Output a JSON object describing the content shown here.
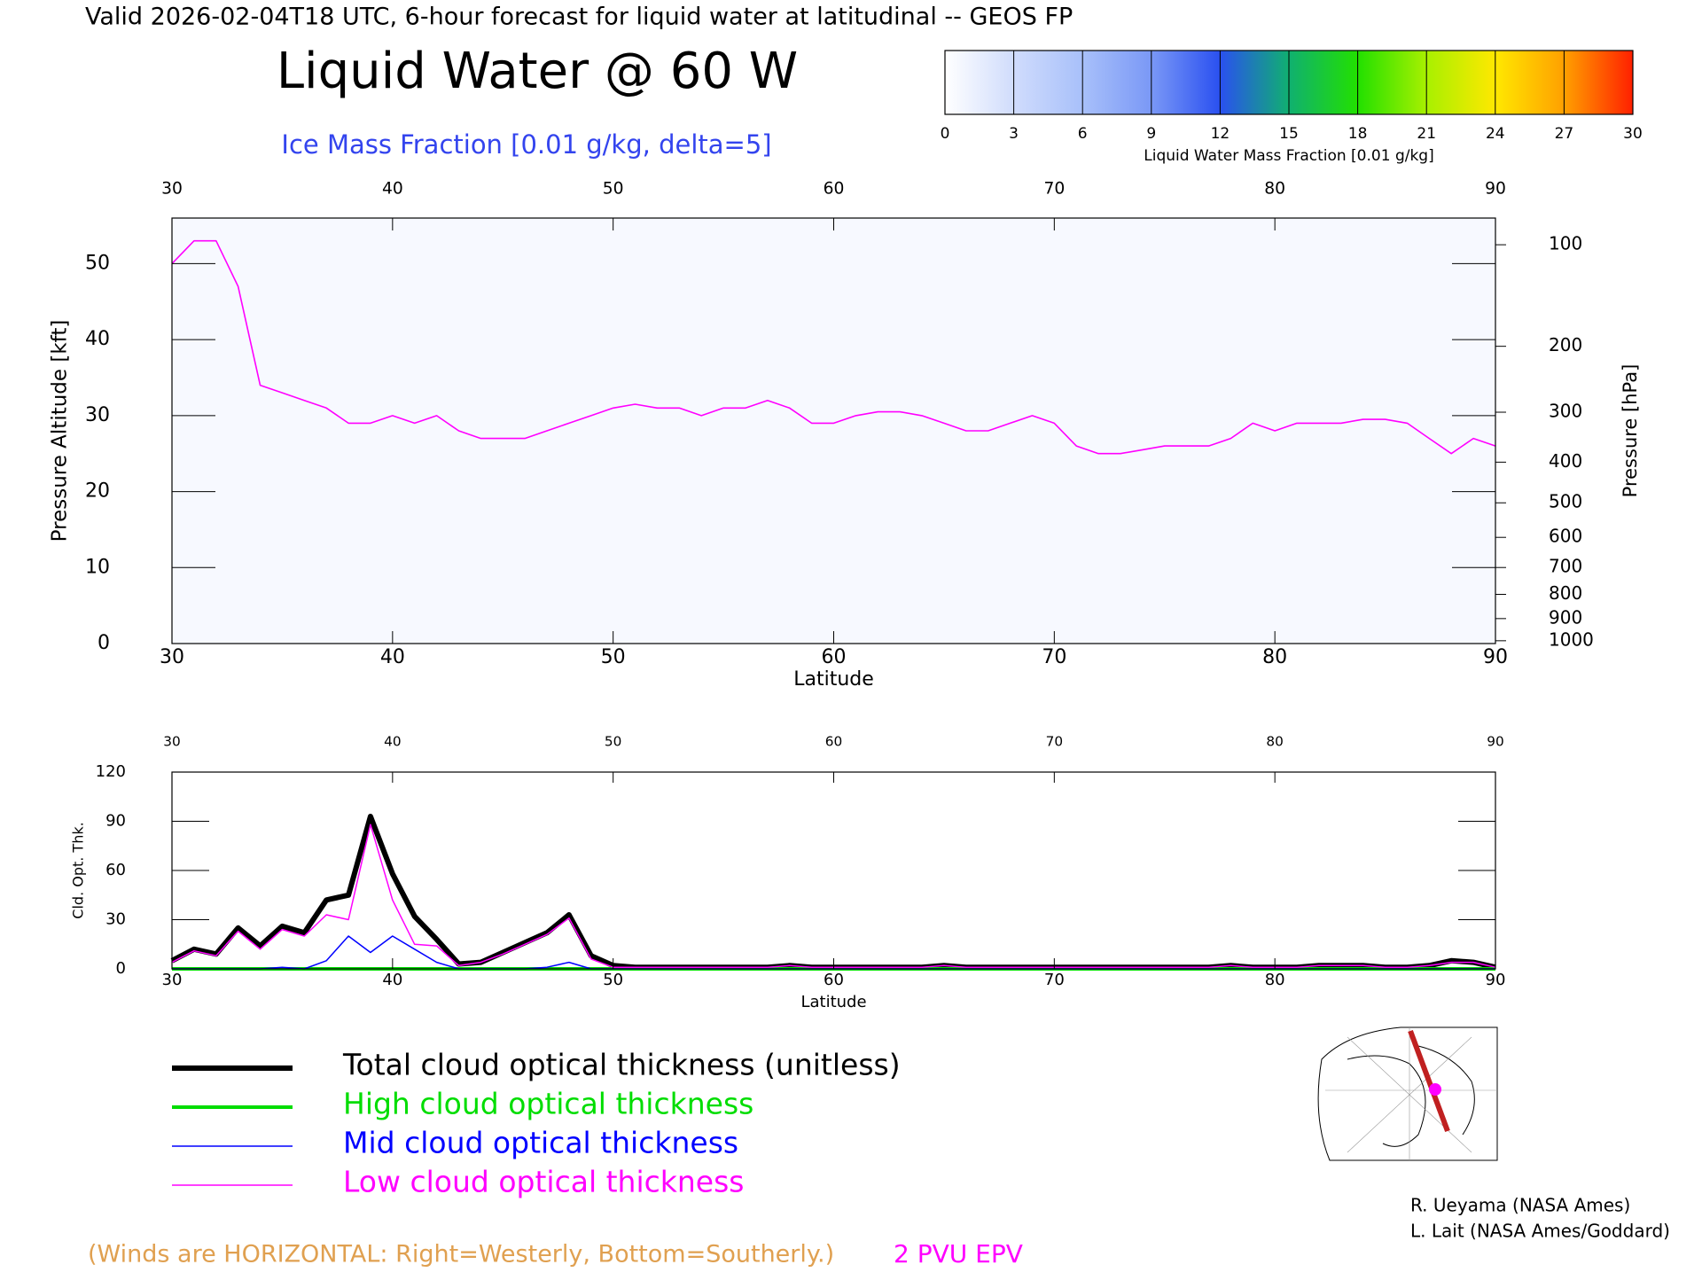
{
  "header": "Valid 2026-02-04T18 UTC, 6-hour forecast for liquid water at latitudinal -- GEOS FP",
  "footnote": "(Winds are HORIZONTAL: Right=Westerly, Bottom=Southerly.)",
  "credits": [
    "R. Ueyama (NASA Ames)",
    "L. Lait (NASA Ames/Goddard)"
  ],
  "chart_data": [
    {
      "type": "line",
      "title": "Liquid Water @ 60 W",
      "subtitle": "Ice Mass Fraction [0.01 g/kg, delta=5]",
      "x_label": "Latitude",
      "y_label": "Pressure Altitude [kft]",
      "y2_label": "Pressure [hPa]",
      "xlim": [
        30,
        90
      ],
      "xticks": [
        30,
        40,
        50,
        60,
        70,
        80,
        90
      ],
      "ylim": [
        0,
        56
      ],
      "yticks": [
        0,
        10,
        20,
        30,
        40,
        50
      ],
      "y2scale": "pressure-altitude",
      "y2lim": [
        1013.25,
        82
      ],
      "y2ticks": [
        100,
        200,
        300,
        400,
        500,
        600,
        700,
        800,
        900,
        1000
      ],
      "x": [
        30,
        31,
        32,
        33,
        34,
        35,
        36,
        37,
        38,
        39,
        40,
        41,
        42,
        43,
        44,
        45,
        46,
        47,
        48,
        49,
        50,
        51,
        52,
        53,
        54,
        55,
        56,
        57,
        58,
        59,
        60,
        61,
        62,
        63,
        64,
        65,
        66,
        67,
        68,
        69,
        70,
        71,
        72,
        73,
        74,
        75,
        76,
        77,
        78,
        79,
        80,
        81,
        82,
        83,
        84,
        85,
        86,
        87,
        88,
        89,
        90
      ],
      "series": [
        {
          "name": "2 PVU EPV",
          "color": "#ff00ff",
          "values": [
            50,
            53,
            53,
            47,
            34,
            33,
            32,
            31,
            29,
            29,
            30,
            29,
            30,
            28,
            27,
            27,
            27,
            28,
            29,
            30,
            31,
            31.5,
            31,
            31,
            30,
            31,
            31,
            32,
            31,
            29,
            29,
            30,
            30.5,
            30.5,
            30,
            29,
            28,
            28,
            29,
            30,
            29,
            26,
            25,
            25,
            25.5,
            26,
            26,
            26,
            27,
            29,
            28,
            29,
            29,
            29,
            29.5,
            29.5,
            29,
            27,
            25,
            27,
            26
          ]
        }
      ]
    },
    {
      "type": "colorbar",
      "label": "Liquid Water Mass Fraction [0.01 g/kg]",
      "lim": [
        0,
        30
      ],
      "ticks": [
        0,
        3,
        6,
        9,
        12,
        15,
        18,
        21,
        24,
        27,
        30
      ],
      "colors": [
        "#ffffff",
        "#d0dcfc",
        "#a8c0fa",
        "#7a98f6",
        "#2a50f0",
        "#10b070",
        "#22e000",
        "#a8f000",
        "#ffe800",
        "#ffa000",
        "#ff2000"
      ]
    },
    {
      "type": "line",
      "x_label": "Latitude",
      "y_label": "Cld. Opt. Thk.",
      "xlim": [
        30,
        90
      ],
      "xticks": [
        30,
        40,
        50,
        60,
        70,
        80,
        90
      ],
      "ylim": [
        0,
        120
      ],
      "yticks": [
        0,
        30,
        60,
        90,
        120
      ],
      "x": [
        30,
        31,
        32,
        33,
        34,
        35,
        36,
        37,
        38,
        39,
        40,
        41,
        42,
        43,
        44,
        45,
        46,
        47,
        48,
        49,
        50,
        51,
        52,
        53,
        54,
        55,
        56,
        57,
        58,
        59,
        60,
        61,
        62,
        63,
        64,
        65,
        66,
        67,
        68,
        69,
        70,
        71,
        72,
        73,
        74,
        75,
        76,
        77,
        78,
        79,
        80,
        81,
        82,
        83,
        84,
        85,
        86,
        87,
        88,
        89,
        90
      ],
      "series": [
        {
          "name": "Total cloud optical thickness (unitless)",
          "color": "#000000",
          "line_width": 6,
          "values": [
            5,
            12,
            9,
            25,
            14,
            26,
            22,
            42,
            45,
            93,
            58,
            32,
            18,
            3,
            4,
            10,
            16,
            22,
            33,
            8,
            2,
            1,
            1,
            1,
            1,
            1,
            1,
            1,
            2,
            1,
            1,
            1,
            1,
            1,
            1,
            2,
            1,
            1,
            1,
            1,
            1,
            1,
            1,
            1,
            1,
            1,
            1,
            1,
            2,
            1,
            1,
            1,
            2,
            2,
            2,
            1,
            1,
            2,
            5,
            4,
            1
          ]
        },
        {
          "name": "High cloud optical thickness",
          "color": "#00dd00",
          "line_width": 4,
          "values": [
            0,
            0,
            0,
            0,
            0,
            0,
            0,
            0,
            0,
            0,
            0,
            0,
            0,
            0,
            0,
            0,
            0,
            0,
            0,
            0,
            0,
            0,
            0,
            0,
            0,
            0,
            0,
            0,
            0,
            0,
            0,
            0,
            0,
            0,
            0,
            0,
            0,
            0,
            0,
            0,
            0,
            0,
            0,
            0,
            0,
            0,
            0,
            0,
            0,
            0,
            0,
            0,
            0,
            0,
            0,
            0,
            0,
            0,
            0,
            0,
            0
          ]
        },
        {
          "name": "Mid cloud optical thickness",
          "color": "#0000ff",
          "line_width": 1.5,
          "values": [
            0,
            0,
            0,
            0,
            0,
            1,
            0,
            5,
            20,
            10,
            20,
            12,
            4,
            0,
            0,
            0,
            0,
            1,
            4,
            0,
            0,
            0,
            0,
            0,
            0,
            0,
            0,
            0,
            0,
            0,
            0,
            0,
            0,
            0,
            0,
            0,
            0,
            0,
            0,
            0,
            0,
            0,
            0,
            0,
            0,
            0,
            0,
            0,
            0,
            0,
            0,
            0,
            0,
            0,
            0,
            0,
            0,
            0,
            0,
            0,
            0
          ]
        },
        {
          "name": "Low cloud optical thickness",
          "color": "#ff00ff",
          "line_width": 1.5,
          "values": [
            4,
            11,
            8,
            23,
            12,
            24,
            20,
            33,
            30,
            88,
            42,
            15,
            14,
            2,
            4,
            9,
            15,
            21,
            31,
            6,
            1,
            1,
            1,
            1,
            1,
            1,
            1,
            1,
            2,
            1,
            1,
            1,
            1,
            1,
            1,
            2,
            1,
            1,
            1,
            1,
            1,
            1,
            1,
            1,
            1,
            1,
            1,
            1,
            2,
            1,
            1,
            1,
            2,
            2,
            2,
            1,
            1,
            2,
            4,
            4,
            1
          ]
        }
      ]
    }
  ]
}
